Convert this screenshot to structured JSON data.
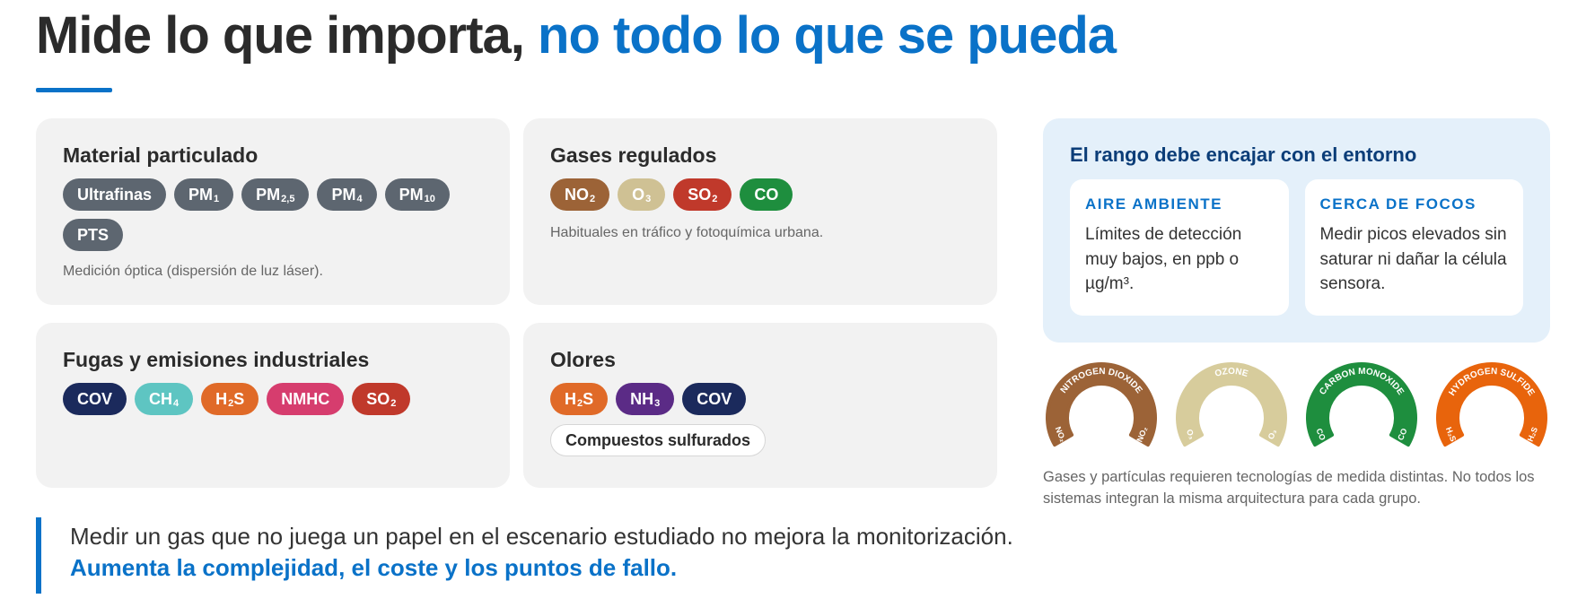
{
  "header": {
    "title_main": "Mide lo que importa,",
    "title_accent": "no todo lo que se pueda"
  },
  "cards": {
    "particulate": {
      "title": "Material particulado",
      "chips": [
        {
          "label": "Ultrafinas",
          "sub": "",
          "color": "#5d6670"
        },
        {
          "label": "PM",
          "sub": "1",
          "color": "#5d6670"
        },
        {
          "label": "PM",
          "sub": "2,5",
          "color": "#5d6670"
        },
        {
          "label": "PM",
          "sub": "4",
          "color": "#5d6670"
        },
        {
          "label": "PM",
          "sub": "10",
          "color": "#5d6670"
        },
        {
          "label": "PTS",
          "sub": "",
          "color": "#5d6670"
        }
      ],
      "note": "Medición óptica (dispersión de luz láser)."
    },
    "regulated": {
      "title": "Gases regulados",
      "chips": [
        {
          "label": "NO",
          "sub": "2",
          "color": "#9c6337"
        },
        {
          "label": "O",
          "sub": "3",
          "color": "#cfc194"
        },
        {
          "label": "SO",
          "sub": "2",
          "color": "#c0392b"
        },
        {
          "label": "CO",
          "sub": "",
          "color": "#1e8e3e"
        }
      ],
      "note": "Habituales en tráfico y fotoquímica urbana."
    },
    "industrial": {
      "title": "Fugas y emisiones industriales",
      "chips": [
        {
          "label": "COV",
          "sub": "",
          "color": "#1b2a5c"
        },
        {
          "label": "CH",
          "sub": "4",
          "color": "#5ec5c2"
        },
        {
          "label": "H",
          "sub": "2",
          "tail": "S",
          "color": "#e06a28"
        },
        {
          "label": "NMHC",
          "sub": "",
          "color": "#d63d6e"
        },
        {
          "label": "SO",
          "sub": "2",
          "color": "#c0392b"
        }
      ]
    },
    "odors": {
      "title": "Olores",
      "chips": [
        {
          "label": "H",
          "sub": "2",
          "tail": "S",
          "color": "#e06a28"
        },
        {
          "label": "NH",
          "sub": "3",
          "color": "#5b2b86"
        },
        {
          "label": "COV",
          "sub": "",
          "color": "#1b2a5c"
        }
      ],
      "extra_chip": "Compuestos sulfurados"
    }
  },
  "range_panel": {
    "title": "El rango debe encajar con el entorno",
    "ambient": {
      "heading": "AIRE AMBIENTE",
      "text": "Límites de detección muy bajos, en ppb o µg/m³."
    },
    "sources": {
      "heading": "CERCA DE FOCOS",
      "text": "Medir picos elevados sin saturar ni dañar la célula sensora."
    }
  },
  "gauges": [
    {
      "name": "NITROGEN DIOXIDE",
      "symbol": "NO₂",
      "color": "#9c6337"
    },
    {
      "name": "OZONE",
      "symbol": "O₃",
      "color": "#d7cc9c"
    },
    {
      "name": "CARBON MONOXIDE",
      "symbol": "CO",
      "color": "#1e8e3e"
    },
    {
      "name": "HYDROGEN SULFIDE",
      "symbol": "H₂S",
      "color": "#e8640c"
    }
  ],
  "gauges_caption": "Gases y partículas requieren tecnologías de medida distintas. No todos los sistemas integran la misma arquitectura para cada grupo.",
  "quote": {
    "line1": "Medir un gas que no juega un papel en el escenario estudiado no mejora la monitorización.",
    "line2": "Aumenta la complejidad, el coste y los puntos de fallo."
  }
}
